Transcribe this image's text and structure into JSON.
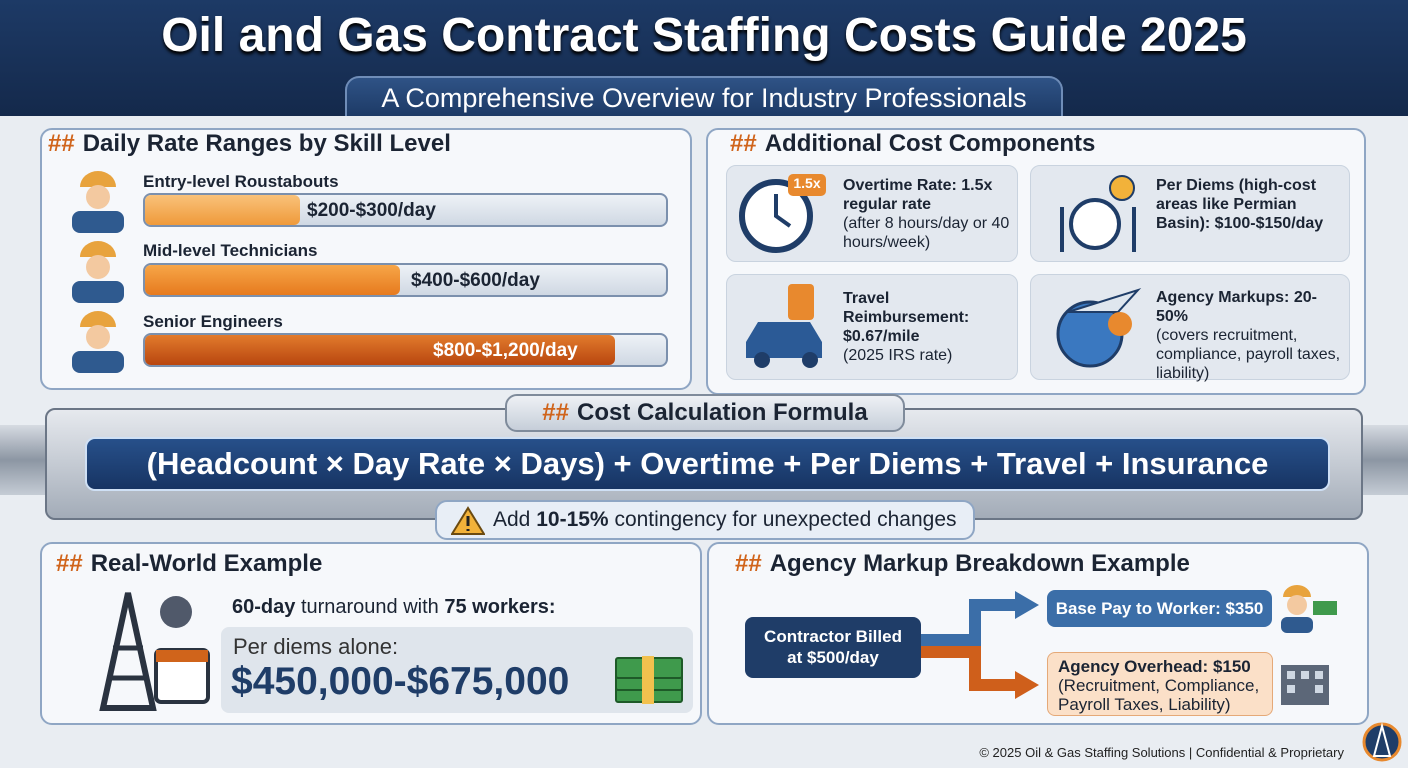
{
  "header": {
    "title": "Oil and Gas Contract Staffing Costs Guide 2025",
    "subtitle": "A Comprehensive Overview for Industry Professionals"
  },
  "rates": {
    "marker": "##",
    "title": "Daily Rate Ranges by Skill Level",
    "items": [
      {
        "label": "Entry-level Roustabouts",
        "range": "$200-$300/day"
      },
      {
        "label": "Mid-level Technicians",
        "range": "$400-$600/day"
      },
      {
        "label": "Senior Engineers",
        "range": "$800-$1,200/day"
      }
    ]
  },
  "costs": {
    "marker": "##",
    "title": "Additional Cost Components",
    "cards": [
      {
        "badge": "1.5x",
        "title": "Overtime Rate: 1.5x regular rate",
        "detail": "(after 8 hours/day or 40 hours/week)"
      },
      {
        "title": "Per Diems (high-cost areas like Permian Basin): $100-$150/day"
      },
      {
        "title": "Travel Reimbursement: $0.67/mile",
        "detail": "(2025 IRS rate)"
      },
      {
        "title": "Agency Markups: 20-50%",
        "detail": "(covers recruitment, compliance, payroll taxes, liability)"
      }
    ]
  },
  "formula": {
    "marker": "##",
    "title": "Cost Calculation Formula",
    "expression": "(Headcount × Day Rate × Days) + Overtime + Per Diems + Travel + Insurance",
    "note": [
      "Add",
      "10-15%",
      "contingency for unexpected changes"
    ]
  },
  "example": {
    "marker": "##",
    "title": "Real-World Example",
    "intro": [
      "60-day",
      "turnaround with",
      "75 workers:"
    ],
    "caption": "Per diems alone:",
    "amount": "$450,000-$675,000"
  },
  "markup": {
    "marker": "##",
    "title": "Agency Markup Breakdown Example",
    "billed": "Contractor Billed at $500/day",
    "base": "Base Pay to Worker: $350",
    "overhead": "Agency Overhead: $150",
    "overhead_detail": "(Recruitment, Compliance, Payroll Taxes, Liability)"
  },
  "footer": "© 2025 Oil & Gas Staffing Solutions | Confidential & Proprietary"
}
